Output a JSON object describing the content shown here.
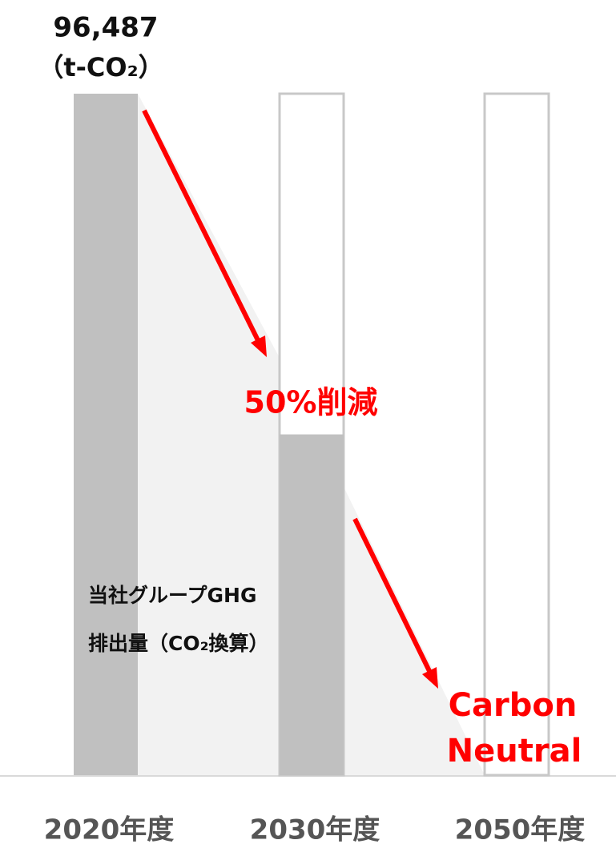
{
  "chart_data": {
    "type": "bar",
    "categories": [
      "2020年度",
      "2030年度",
      "2050年度"
    ],
    "values": [
      96487,
      48244,
      0
    ],
    "value_labels": [
      "96,487",
      null,
      null
    ],
    "unit": "（t-CO₂）",
    "color": "#c0c0c0",
    "ylim": [
      0,
      96487
    ],
    "annotations": [
      "50%削減",
      "Carbon",
      "Neutral"
    ],
    "annotation_color": "#ff0000",
    "series_label": [
      "当社グループGHG",
      "排出量（CO₂換算）"
    ]
  }
}
